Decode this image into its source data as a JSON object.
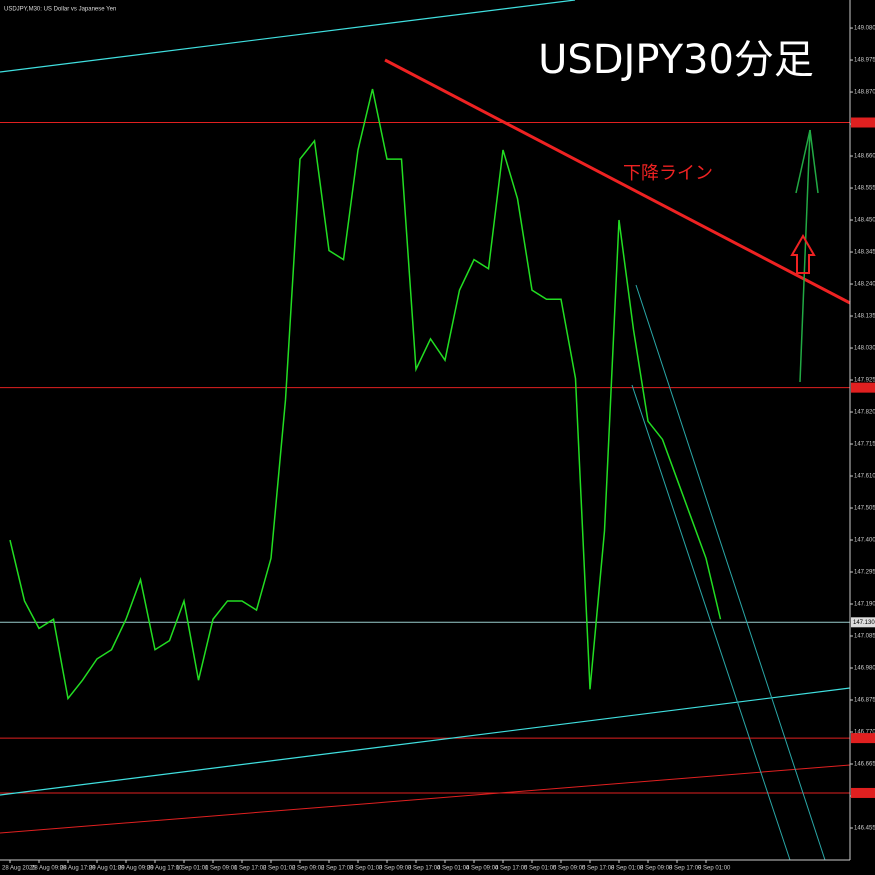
{
  "chart_data": {
    "type": "line",
    "title": "USDJPY,M30: US Dollar vs Japanese Yen",
    "headline": "USDJPY30分足",
    "annotation": "下降ライン",
    "categories": [
      "28 Aug 2025",
      null,
      "28 Aug 09:00",
      null,
      "28 Aug 17:00",
      null,
      "29 Aug 01:00",
      null,
      "29 Aug 09:00",
      null,
      "29 Aug 17:00",
      null,
      "1 Sep 01:00",
      null,
      "1 Sep 09:00",
      null,
      "1 Sep 17:00",
      null,
      "2 Sep 01:00",
      null,
      "2 Sep 09:00",
      null,
      "2 Sep 17:00",
      null,
      "3 Sep 01:00",
      null,
      "3 Sep 09:00",
      null,
      "3 Sep 17:00",
      null,
      "4 Sep 01:00",
      null,
      "4 Sep 09:00",
      null,
      "4 Sep 17:00",
      null,
      "5 Sep 01:00",
      null,
      "5 Sep 09:00",
      null,
      "5 Sep 17:00",
      null,
      "8 Sep 01:00",
      null,
      "8 Sep 09:00",
      null,
      "8 Sep 17:00",
      null,
      "9 Sep 01:00",
      null
    ],
    "series": [
      {
        "name": "USDJPY",
        "color": "#22dd22",
        "values": [
          147.4,
          147.2,
          147.11,
          147.14,
          146.88,
          146.94,
          147.01,
          147.04,
          147.14,
          147.27,
          147.04,
          147.07,
          147.2,
          146.94,
          147.14,
          147.2,
          147.2,
          147.17,
          147.34,
          147.86,
          148.65,
          148.71,
          148.35,
          148.32,
          148.68,
          148.88,
          148.65,
          148.65,
          147.96,
          148.06,
          147.99,
          148.22,
          148.32,
          148.29,
          148.68,
          148.52,
          148.22,
          148.19,
          148.19,
          147.93,
          146.91,
          147.43,
          148.45,
          148.09,
          147.79,
          147.73,
          147.6,
          147.47,
          147.34,
          147.14
        ]
      }
    ],
    "levels": [
      148.77,
      147.9,
      146.75,
      146.57
    ],
    "level_color": "#e02020",
    "current_price": 147.13,
    "current_price_label": "147.130",
    "ylim": [
      146.35,
      149.172
    ],
    "yticks": [
      {
        "value": 149.08,
        "label": "149.080"
      },
      148.975,
      {
        "value": 148.87,
        "label": "148.870"
      },
      148.765,
      {
        "value": 148.66,
        "label": "148.660"
      },
      148.555,
      {
        "value": 148.45,
        "label": "148.450"
      },
      148.345,
      {
        "value": 148.24,
        "label": "148.240"
      },
      148.135,
      {
        "value": 148.03,
        "label": "148.030"
      },
      147.925,
      {
        "value": 147.82,
        "label": "147.820"
      },
      147.715,
      {
        "value": 147.61,
        "label": "147.610"
      },
      147.505,
      {
        "value": 147.4,
        "label": "147.400"
      },
      147.295,
      {
        "value": 147.19,
        "label": "147.190"
      },
      147.085,
      {
        "value": 146.98,
        "label": "146.980"
      },
      146.875,
      {
        "value": 146.77,
        "label": "146.770"
      },
      146.665,
      {
        "value": 146.56,
        "label": "146.560"
      },
      146.455
    ]
  }
}
